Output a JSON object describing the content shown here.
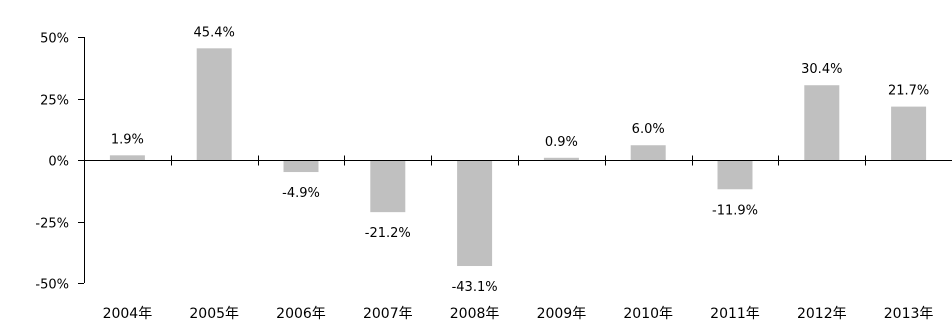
{
  "chart_data": {
    "type": "bar",
    "title": "",
    "xlabel": "",
    "ylabel": "",
    "categories": [
      "2004年",
      "2005年",
      "2006年",
      "2007年",
      "2008年",
      "2009年",
      "2010年",
      "2011年",
      "2012年",
      "2013年"
    ],
    "values": [
      1.9,
      45.4,
      -4.9,
      -21.2,
      -43.1,
      0.9,
      6.0,
      -11.9,
      30.4,
      21.7
    ],
    "data_labels": [
      "1.9%",
      "45.4%",
      "-4.9%",
      "-21.2%",
      "-43.1%",
      "0.9%",
      "6.0%",
      "-11.9%",
      "30.4%",
      "21.7%"
    ],
    "yticks": [
      50,
      25,
      0,
      -25,
      -50
    ],
    "ytick_labels": [
      "50%",
      "25%",
      "0%",
      "-25%",
      "-50%"
    ],
    "ylim": [
      -50,
      50
    ],
    "grid": false,
    "legend": "none",
    "bar_color": "#c0c0c0",
    "axis_color": "#000000"
  }
}
